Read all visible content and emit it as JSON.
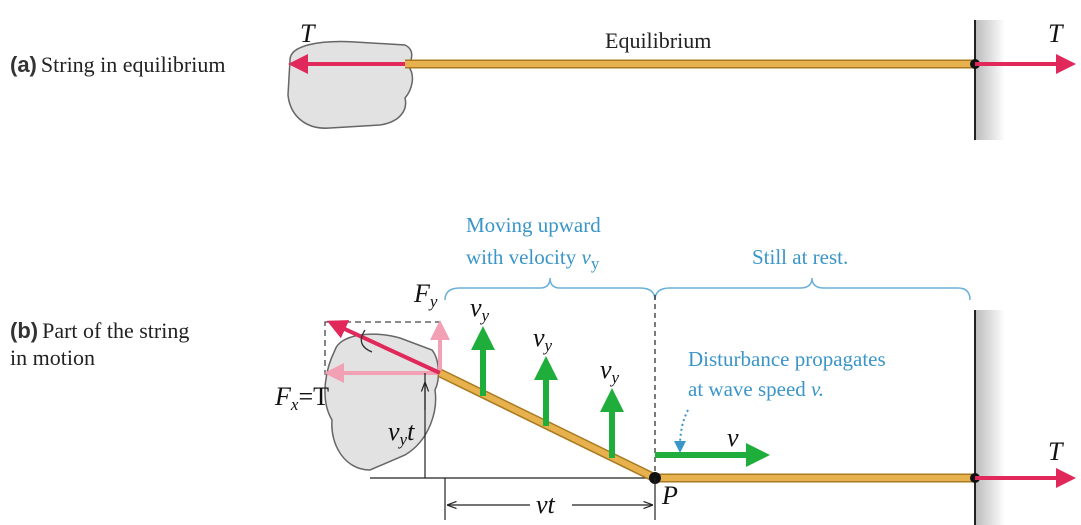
{
  "panel_a": {
    "letter": "(a)",
    "caption": "String in equilibrium",
    "left_force": "T",
    "state": "Equilibrium",
    "right_force": "T"
  },
  "panel_b": {
    "letter": "(b)",
    "caption_lines": [
      "Part of the string",
      "in motion"
    ],
    "moving_lines": [
      "Moving upward",
      "with velocity "
    ],
    "moving_symbol": {
      "main": "v",
      "sub": "y"
    },
    "rest": "Still at rest.",
    "force_y": {
      "main": "F",
      "sub": "y"
    },
    "force_x": {
      "main": "F",
      "sub": "x",
      "rest": "=T"
    },
    "velocity_labels": [
      {
        "main": "v",
        "sub": "y"
      },
      {
        "main": "v",
        "sub": "y"
      },
      {
        "main": "v",
        "sub": "y"
      }
    ],
    "disturbance_lines": [
      "Disturbance propagates",
      "at wave speed "
    ],
    "disturbance_symbol": "v.",
    "wave_speed": "v",
    "height": {
      "main": "v",
      "sub": "y",
      "rest": "t"
    },
    "distance": "vt",
    "point": "P",
    "right_force": "T"
  }
}
